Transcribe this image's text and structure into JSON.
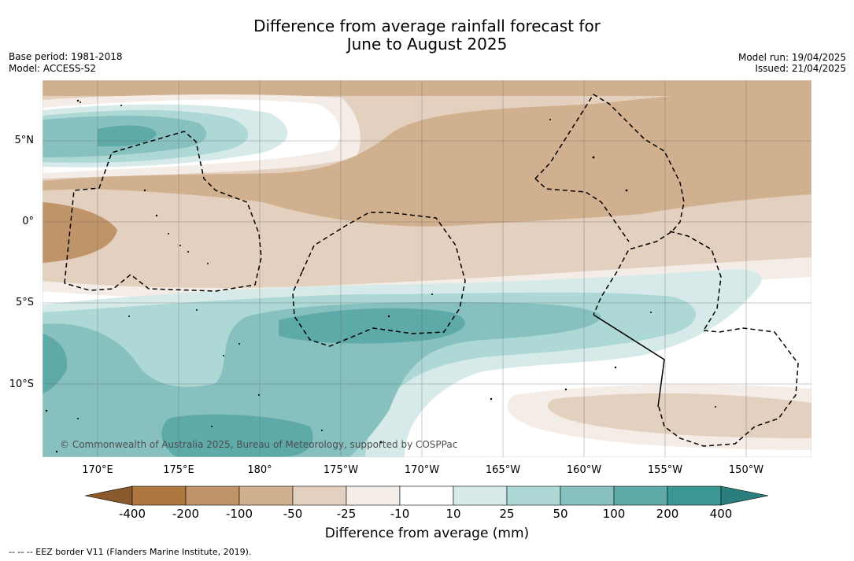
{
  "title_line1": "Difference from average rainfall forecast for",
  "title_line2": "June to August 2025",
  "left_meta": {
    "base_period": "Base period: 1981-2018",
    "model": "Model: ACCESS-S2"
  },
  "right_meta": {
    "model_run": "Model run: 19/04/2025",
    "issued": "Issued: 21/04/2025"
  },
  "lat_labels": [
    "5°N",
    "0°",
    "5°S",
    "10°S"
  ],
  "lon_labels": [
    "170°E",
    "175°E",
    "180°",
    "175°W",
    "170°W",
    "165°W",
    "160°W",
    "155°W",
    "150°W"
  ],
  "copyright": "© Commonwealth of Australia 2025, Bureau of Meteorology, supported by COSPPac",
  "colorbar": {
    "ticks": [
      "-400",
      "-200",
      "-100",
      "-50",
      "-25",
      "-10",
      "10",
      "25",
      "50",
      "100",
      "200",
      "400"
    ],
    "colors": [
      "#8a5a2c",
      "#ad7840",
      "#bf9468",
      "#d1b08f",
      "#e4d0bf",
      "#f4ece6",
      "#ffffff",
      "#d6ebe9",
      "#add8d5",
      "#86c1bf",
      "#5eaaa8",
      "#3a9794",
      "#2a7f7c"
    ],
    "label": "Difference from average (mm)"
  },
  "footnote": "--  --  -- EEZ border V11 (Flanders Marine Institute, 2019)."
}
